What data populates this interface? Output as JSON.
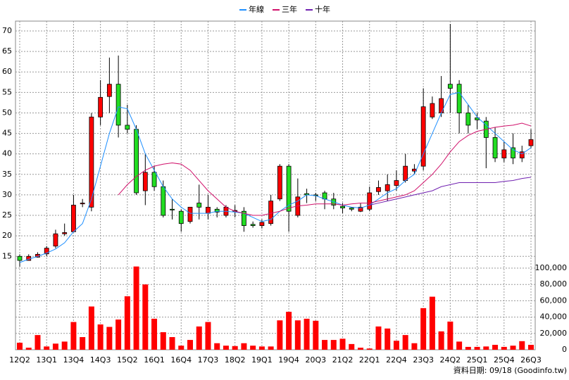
{
  "chart_data": {
    "type": "candlestick",
    "categories": [
      "12Q2",
      null,
      null,
      "13Q1",
      null,
      null,
      "13Q4",
      null,
      null,
      "14Q3",
      null,
      null,
      "15Q2",
      null,
      null,
      "16Q1",
      null,
      null,
      "16Q4",
      null,
      null,
      "17Q3",
      null,
      null,
      "18Q2",
      null,
      null,
      "19Q1",
      null,
      null,
      "19Q4",
      null,
      null,
      "20Q3",
      null,
      null,
      "21Q2",
      null,
      null,
      "22Q1",
      null,
      null,
      "22Q4",
      null,
      null,
      "23Q3",
      null,
      null,
      "24Q2",
      null,
      null,
      "25Q1",
      null,
      null,
      "25Q4",
      null,
      null,
      "26Q3"
    ],
    "open": [
      15,
      14,
      14.8,
      15.6,
      17.5,
      20.5,
      21,
      27.8,
      27,
      49,
      54,
      57,
      47,
      46,
      31,
      35.5,
      32,
      26.5,
      26,
      23.5,
      28,
      25.5,
      26.5,
      25,
      26,
      26,
      22.8,
      22.5,
      23,
      29,
      37,
      25,
      30.3,
      30,
      30.5,
      29,
      27.2,
      26.8,
      26,
      26.5,
      30.8,
      31,
      32.3,
      33.5,
      35.8,
      37,
      49,
      50,
      57,
      57,
      50,
      48.8,
      48,
      44,
      39,
      41.5,
      39,
      42
    ],
    "high": [
      15.5,
      15.5,
      16,
      17.5,
      21.5,
      23,
      30,
      29,
      50,
      58,
      63.5,
      64,
      52,
      47,
      40,
      37,
      33.5,
      29,
      26.5,
      27,
      32.5,
      30,
      27,
      27.5,
      27.5,
      27,
      23.5,
      24,
      30,
      37.5,
      37.5,
      34,
      31.5,
      30.5,
      31,
      30.5,
      28,
      27,
      28,
      32,
      33.5,
      35,
      36,
      40,
      37.5,
      56,
      54,
      59,
      71.7,
      58,
      52,
      50,
      49,
      46.5,
      43,
      45,
      42,
      46
    ],
    "low": [
      12.5,
      14,
      14.7,
      15,
      17,
      20,
      21,
      27,
      26,
      47,
      50,
      44,
      45,
      30,
      27.5,
      31,
      24.5,
      24,
      21,
      23,
      24,
      24,
      24.5,
      24.5,
      24.5,
      21,
      22,
      21.8,
      22.5,
      28.5,
      21,
      24.5,
      28,
      28.5,
      26.5,
      26.5,
      25.5,
      26,
      25.8,
      26,
      30,
      28.5,
      31,
      33,
      35,
      36,
      48.5,
      49,
      50,
      45,
      45,
      46,
      36.5,
      38,
      38,
      37.5,
      38,
      41.5
    ],
    "close": [
      14,
      15,
      15.5,
      17,
      20.5,
      20.8,
      27.5,
      28,
      49,
      53.8,
      57,
      47,
      46,
      30.5,
      35.5,
      32,
      25,
      26.3,
      23,
      27,
      27,
      27,
      25.8,
      27,
      26.2,
      22.5,
      22.5,
      23.3,
      28.5,
      37,
      26,
      29.5,
      30,
      29.8,
      29,
      27.5,
      26.8,
      26.5,
      27,
      30.5,
      31.8,
      32.5,
      33.5,
      37,
      36.3,
      51.5,
      52.3,
      53.5,
      56,
      50,
      47,
      48.3,
      44,
      39,
      41,
      39,
      40.5,
      43.5
    ],
    "up_color": "#ff0000",
    "down_color": "#22dd22",
    "series": [
      {
        "name": "年線",
        "color": "#1e8fff",
        "values": [
          13.5,
          14.3,
          15,
          15.8,
          16.8,
          18.3,
          21,
          23,
          29,
          37,
          45,
          51.5,
          51,
          46,
          40,
          36,
          32,
          29,
          27,
          25.5,
          25.5,
          25.5,
          26,
          26,
          25.8,
          25.5,
          24.5,
          23.5,
          24,
          26,
          27.5,
          28.5,
          30,
          29.8,
          29,
          28.3,
          27.5,
          27,
          26.8,
          27.5,
          29,
          30.5,
          31.5,
          33.5,
          35,
          40,
          45,
          50,
          54.5,
          55,
          52,
          49,
          47,
          45,
          43,
          41,
          40,
          41.5
        ]
      },
      {
        "name": "三年",
        "color": "#d0106a",
        "values": [
          null,
          null,
          null,
          null,
          null,
          null,
          null,
          null,
          null,
          null,
          null,
          30,
          32.5,
          34.5,
          36,
          37,
          37.5,
          37.8,
          37.5,
          36,
          33.5,
          31,
          29,
          27,
          26,
          25.5,
          25,
          25,
          25.5,
          26,
          26.8,
          27.3,
          27.5,
          27.8,
          27.8,
          27.8,
          27.5,
          27.8,
          28,
          28,
          28.5,
          29,
          29.5,
          30,
          31,
          33,
          35,
          37.5,
          40.5,
          43,
          44.5,
          45.5,
          46,
          46.5,
          46.8,
          47,
          47.5,
          46.8
        ]
      },
      {
        "name": "十年",
        "color": "#7020b0",
        "values": [
          null,
          null,
          null,
          null,
          null,
          null,
          null,
          null,
          null,
          null,
          null,
          null,
          null,
          null,
          null,
          null,
          null,
          null,
          null,
          null,
          null,
          null,
          null,
          null,
          null,
          null,
          null,
          null,
          null,
          null,
          null,
          null,
          null,
          null,
          null,
          null,
          null,
          null,
          null,
          27.5,
          28,
          28.5,
          29,
          29.5,
          30,
          30.5,
          31,
          32,
          32.5,
          33,
          33,
          33,
          33,
          33,
          33.3,
          33.5,
          34,
          34.3
        ]
      }
    ],
    "volume": {
      "color": "#ff0000",
      "axis": "y2",
      "values": [
        8600,
        2500,
        18000,
        4000,
        7500,
        10000,
        34000,
        15500,
        53000,
        31000,
        28000,
        37000,
        65500,
        102000,
        80000,
        38000,
        21500,
        15500,
        5000,
        12000,
        28500,
        34000,
        8000,
        5000,
        4500,
        8000,
        5000,
        4000,
        4000,
        36000,
        46500,
        36000,
        38000,
        35500,
        12000,
        12000,
        13500,
        7000,
        2500,
        1500,
        28500,
        26000,
        11000,
        18000,
        8000,
        51000,
        65000,
        22500,
        34500,
        10000,
        3500,
        3500,
        4000,
        6000,
        3500,
        5000,
        10500,
        6000
      ]
    },
    "ylim": [
      12.3,
      72.4
    ],
    "yticks": [
      15,
      20,
      25,
      30,
      35,
      40,
      45,
      50,
      55,
      60,
      65,
      70
    ],
    "y2lim": [
      0,
      109000
    ],
    "y2ticks": [
      0,
      {
        "value": 20000,
        "label": "20,000"
      },
      {
        "value": 40000,
        "label": "40,000"
      },
      {
        "value": 60000,
        "label": "60,000"
      },
      {
        "value": 80000,
        "label": "80,000"
      },
      {
        "value": 100000,
        "label": "100,000"
      }
    ],
    "grid": true,
    "note": "資料日期: 09/18 (Goodinfo.tw)"
  }
}
